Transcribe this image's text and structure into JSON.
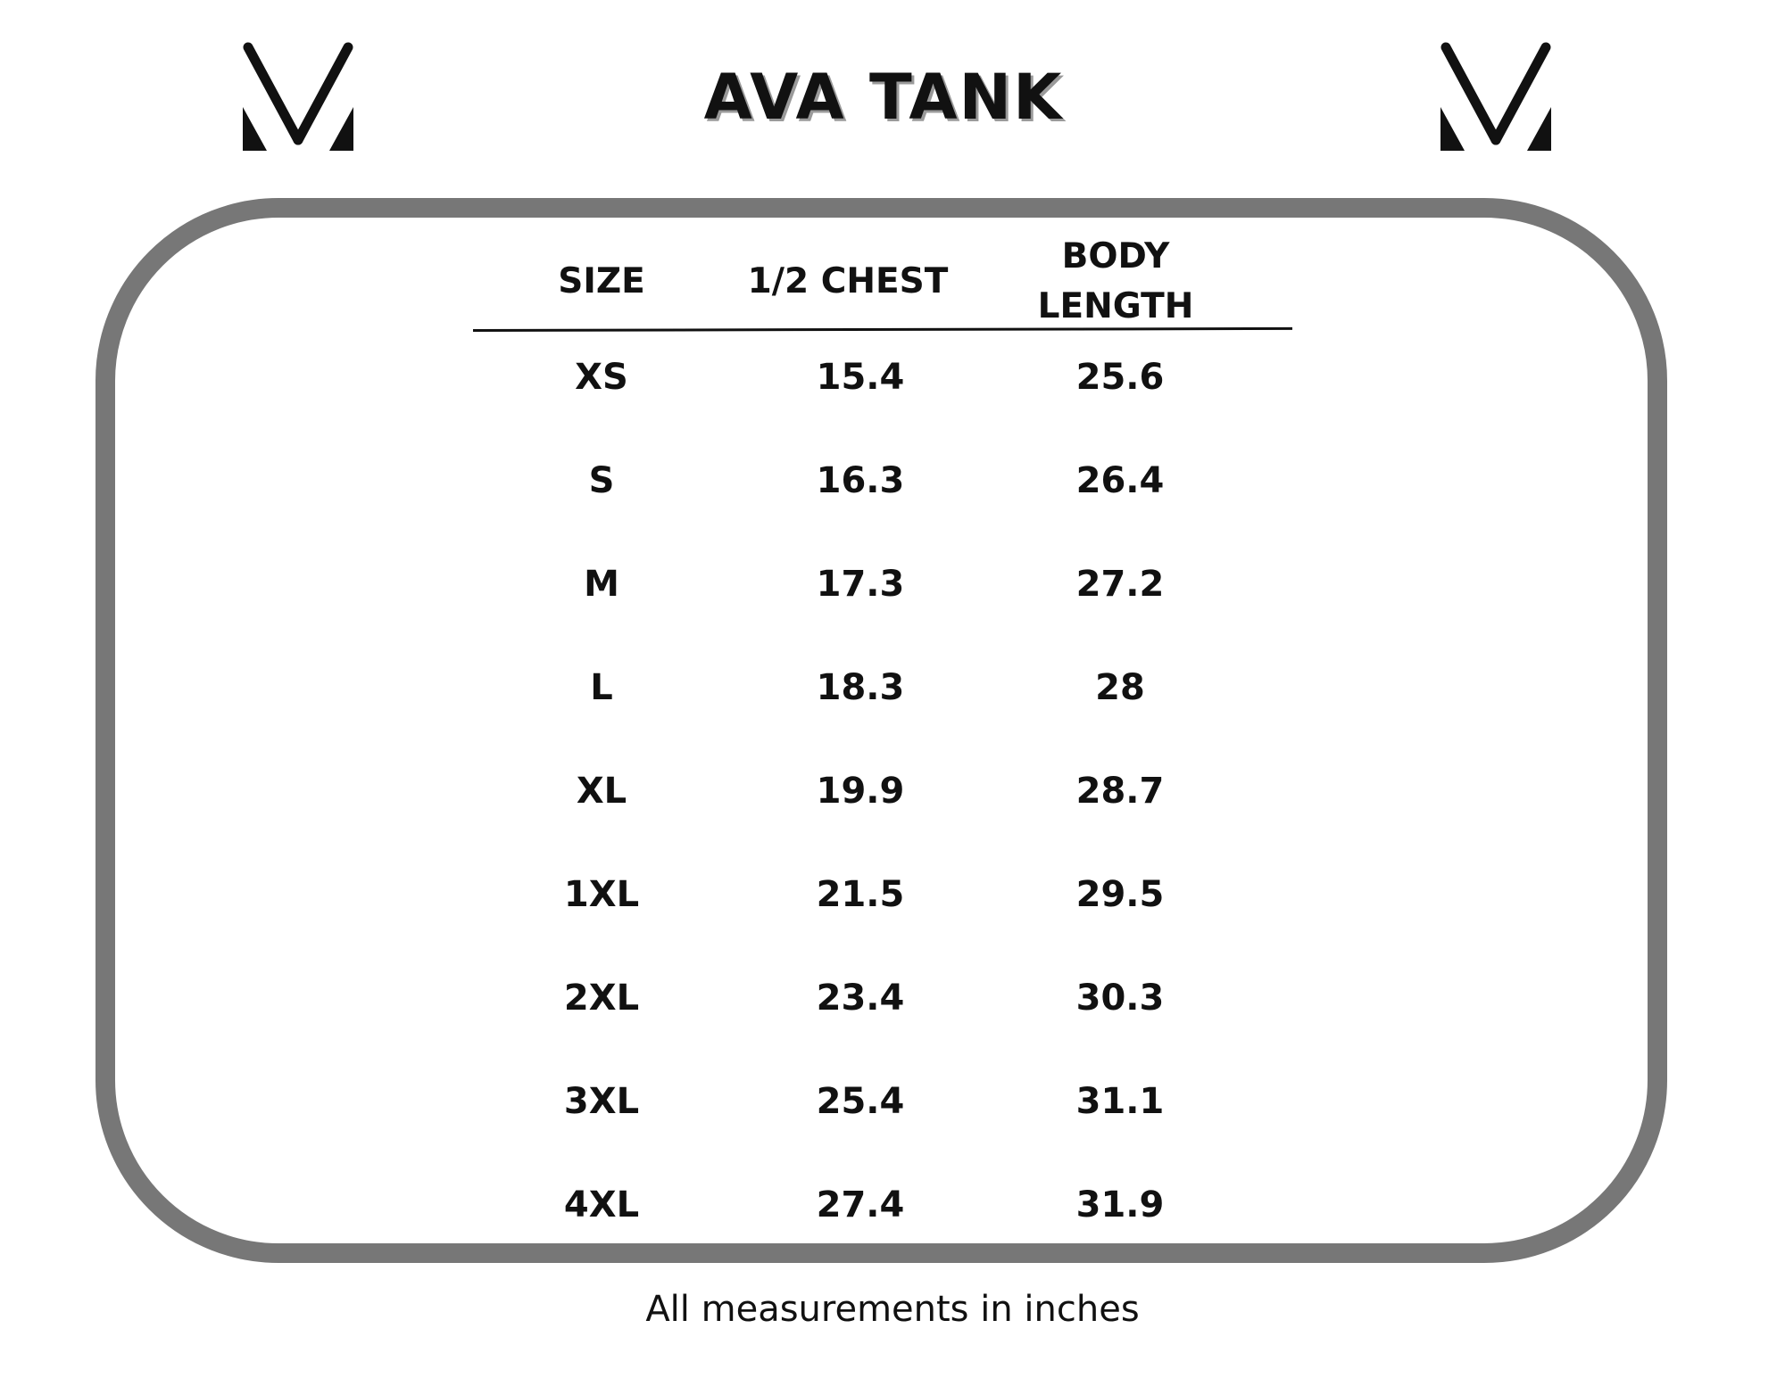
{
  "title": "AVA TANK",
  "logo_icon": "v-monogram-icon",
  "table": {
    "headers": {
      "size": "SIZE",
      "chest": "1/2 CHEST",
      "body_line1": "BODY",
      "body_line2": "LENGTH"
    },
    "rows": [
      {
        "size": "XS",
        "chest": "15.4",
        "body": "25.6"
      },
      {
        "size": "S",
        "chest": "16.3",
        "body": "26.4"
      },
      {
        "size": "M",
        "chest": "17.3",
        "body": "27.2"
      },
      {
        "size": "L",
        "chest": "18.3",
        "body": "28"
      },
      {
        "size": "XL",
        "chest": "19.9",
        "body": "28.7"
      },
      {
        "size": "1XL",
        "chest": "21.5",
        "body": "29.5"
      },
      {
        "size": "2XL",
        "chest": "23.4",
        "body": "30.3"
      },
      {
        "size": "3XL",
        "chest": "25.4",
        "body": "31.1"
      },
      {
        "size": "4XL",
        "chest": "27.4",
        "body": "31.9"
      }
    ]
  },
  "footnote": "All measurements in inches",
  "colors": {
    "frame": "#777777",
    "text": "#111111",
    "title_shadow": "#9a9a9a"
  }
}
